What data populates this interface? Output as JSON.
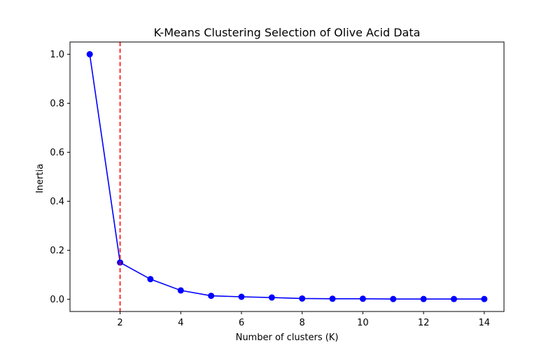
{
  "chart_data": {
    "type": "line",
    "title": "K-Means Clustering Selection of Olive Acid Data",
    "xlabel": "Number of clusters (K)",
    "ylabel": "Inertia",
    "xlim": [
      0.35,
      14.65
    ],
    "ylim": [
      -0.05,
      1.05
    ],
    "xticks": [
      2,
      4,
      6,
      8,
      10,
      12,
      14
    ],
    "yticks": [
      0.0,
      0.2,
      0.4,
      0.6,
      0.8,
      1.0
    ],
    "xtick_labels": [
      "2",
      "4",
      "6",
      "8",
      "10",
      "12",
      "14"
    ],
    "ytick_labels": [
      "0.0",
      "0.2",
      "0.4",
      "0.6",
      "0.8",
      "1.0"
    ],
    "series": [
      {
        "name": "Inertia",
        "color": "#0000ff",
        "marker": "circle",
        "x": [
          1,
          2,
          3,
          4,
          5,
          6,
          7,
          8,
          9,
          10,
          11,
          12,
          13,
          14
        ],
        "y": [
          1.0,
          0.15,
          0.082,
          0.036,
          0.014,
          0.01,
          0.007,
          0.003,
          0.002,
          0.002,
          0.001,
          0.001,
          0.001,
          0.001
        ]
      }
    ],
    "vline": {
      "x": 2,
      "color": "#ff0000",
      "style": "dashed"
    },
    "grid": false
  }
}
